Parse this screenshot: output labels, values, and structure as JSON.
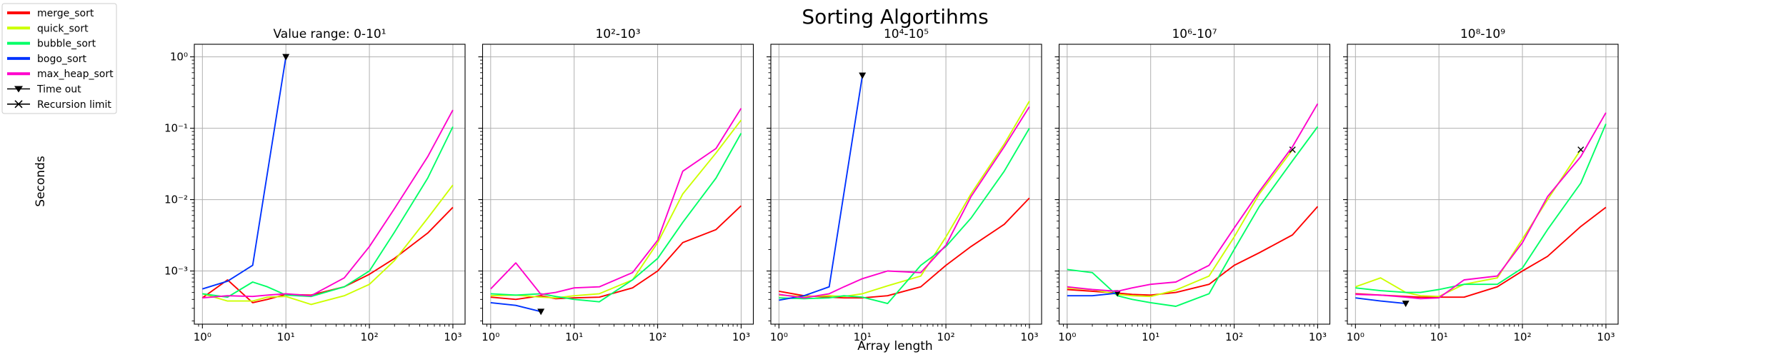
{
  "suptitle": "Sorting Algortihms",
  "ylabel": "Seconds",
  "xlabel": "Array length",
  "legend": {
    "placement": "upper-left",
    "entries": [
      {
        "label": "merge_sort",
        "color": "#ff0000",
        "kind": "line"
      },
      {
        "label": "quick_sort",
        "color": "#ccff00",
        "kind": "line"
      },
      {
        "label": "bubble_sort",
        "color": "#00ff66",
        "kind": "line"
      },
      {
        "label": "bogo_sort",
        "color": "#0033ff",
        "kind": "line"
      },
      {
        "label": "max_heap_sort",
        "color": "#ff00cc",
        "kind": "line"
      },
      {
        "label": "Time out",
        "color": "#000000",
        "kind": "marker-triangle"
      },
      {
        "label": "Recursion limit",
        "color": "#000000",
        "kind": "marker-x"
      }
    ]
  },
  "chart_data": [
    {
      "type": "line",
      "title": "Value range: 0-10¹",
      "xscale": "log",
      "yscale": "log",
      "xlim": [
        0.8,
        1400
      ],
      "ylim": [
        0.00018,
        1.5
      ],
      "xticks": [
        {
          "v": 1,
          "label": "10⁰"
        },
        {
          "v": 10,
          "label": "10¹"
        },
        {
          "v": 100,
          "label": "10²"
        },
        {
          "v": 1000,
          "label": "10³"
        }
      ],
      "yticks": [
        {
          "v": 0.001,
          "label": "10⁻³"
        },
        {
          "v": 0.01,
          "label": "10⁻²"
        },
        {
          "v": 0.1,
          "label": "10⁻¹"
        },
        {
          "v": 1,
          "label": "10⁰"
        }
      ],
      "show_yticklabels": true,
      "grid": true,
      "series": [
        {
          "color": "#ff0000",
          "x": [
            1,
            2,
            4,
            6,
            10,
            20,
            50,
            100,
            200,
            500,
            1000
          ],
          "y": [
            0.00042,
            0.00075,
            0.00036,
            0.0004,
            0.00047,
            0.00046,
            0.0006,
            0.0009,
            0.0015,
            0.0034,
            0.0078
          ]
        },
        {
          "color": "#ccff00",
          "x": [
            1,
            2,
            4,
            6,
            10,
            20,
            50,
            100,
            200,
            500,
            1000
          ],
          "y": [
            0.00048,
            0.00038,
            0.00038,
            0.00043,
            0.00044,
            0.00034,
            0.00045,
            0.00065,
            0.0014,
            0.0055,
            0.016
          ]
        },
        {
          "color": "#00ff66",
          "x": [
            1,
            2,
            4,
            6,
            10,
            20,
            50,
            100,
            200,
            500,
            1000
          ],
          "y": [
            0.00048,
            0.00043,
            0.0007,
            0.0006,
            0.00046,
            0.00044,
            0.0006,
            0.001,
            0.0035,
            0.02,
            0.105
          ]
        },
        {
          "color": "#0033ff",
          "x": [
            1,
            2,
            4,
            10
          ],
          "y": [
            0.00056,
            0.00072,
            0.0012,
            1.0
          ],
          "end_marker": "triangle"
        },
        {
          "color": "#ff00cc",
          "x": [
            1,
            2,
            4,
            6,
            10,
            20,
            50,
            100,
            200,
            500,
            1000
          ],
          "y": [
            0.00042,
            0.00045,
            0.00044,
            0.00046,
            0.00048,
            0.00045,
            0.0008,
            0.0022,
            0.0075,
            0.04,
            0.18
          ]
        }
      ]
    },
    {
      "type": "line",
      "title": "10²-10³",
      "xscale": "log",
      "yscale": "log",
      "xlim": [
        0.8,
        1400
      ],
      "ylim": [
        0.00018,
        1.5
      ],
      "xticks": [
        {
          "v": 1,
          "label": "10⁰"
        },
        {
          "v": 10,
          "label": "10¹"
        },
        {
          "v": 100,
          "label": "10²"
        },
        {
          "v": 1000,
          "label": "10³"
        }
      ],
      "yticks": [
        {
          "v": 0.001,
          "label": "10⁻³"
        },
        {
          "v": 0.01,
          "label": "10⁻²"
        },
        {
          "v": 0.1,
          "label": "10⁻¹"
        },
        {
          "v": 1,
          "label": "10⁰"
        }
      ],
      "show_yticklabels": false,
      "grid": true,
      "series": [
        {
          "color": "#ff0000",
          "x": [
            1,
            2,
            4,
            6,
            10,
            20,
            50,
            100,
            200,
            500,
            1000
          ],
          "y": [
            0.00043,
            0.0004,
            0.00045,
            0.00041,
            0.00042,
            0.00043,
            0.00058,
            0.001,
            0.0025,
            0.0038,
            0.0082
          ]
        },
        {
          "color": "#ccff00",
          "x": [
            1,
            2,
            4,
            6,
            10,
            20,
            50,
            100,
            200,
            500,
            1000
          ],
          "y": [
            0.00045,
            0.00046,
            0.00043,
            0.00042,
            0.00045,
            0.00048,
            0.00075,
            0.0025,
            0.012,
            0.045,
            0.13
          ]
        },
        {
          "color": "#00ff66",
          "x": [
            1,
            2,
            4,
            6,
            10,
            20,
            50,
            100,
            200,
            500,
            1000
          ],
          "y": [
            0.00048,
            0.00046,
            0.00048,
            0.00044,
            0.0004,
            0.00037,
            0.00075,
            0.0015,
            0.0048,
            0.02,
            0.085
          ]
        },
        {
          "color": "#0033ff",
          "x": [
            1,
            2,
            4
          ],
          "y": [
            0.00036,
            0.00033,
            0.00027
          ],
          "end_marker": "triangle"
        },
        {
          "color": "#ff00cc",
          "x": [
            1,
            2,
            4,
            6,
            10,
            20,
            50,
            100,
            200,
            500,
            1000
          ],
          "y": [
            0.00056,
            0.0013,
            0.00047,
            0.0005,
            0.00058,
            0.0006,
            0.00095,
            0.0027,
            0.025,
            0.052,
            0.19
          ]
        }
      ]
    },
    {
      "type": "line",
      "title": "10⁴-10⁵",
      "xscale": "log",
      "yscale": "log",
      "xlim": [
        0.8,
        1400
      ],
      "ylim": [
        0.00018,
        1.5
      ],
      "xticks": [
        {
          "v": 1,
          "label": "10⁰"
        },
        {
          "v": 10,
          "label": "10¹"
        },
        {
          "v": 100,
          "label": "10²"
        },
        {
          "v": 1000,
          "label": "10³"
        }
      ],
      "yticks": [
        {
          "v": 0.001,
          "label": "10⁻³"
        },
        {
          "v": 0.01,
          "label": "10⁻²"
        },
        {
          "v": 0.1,
          "label": "10⁻¹"
        },
        {
          "v": 1,
          "label": "10⁰"
        }
      ],
      "show_yticklabels": false,
      "grid": true,
      "series": [
        {
          "color": "#ff0000",
          "x": [
            1,
            2,
            4,
            6,
            10,
            20,
            50,
            100,
            200,
            500,
            1000
          ],
          "y": [
            0.00052,
            0.00045,
            0.00043,
            0.00042,
            0.00042,
            0.00045,
            0.0006,
            0.0012,
            0.0022,
            0.0045,
            0.0105
          ]
        },
        {
          "color": "#ccff00",
          "x": [
            1,
            2,
            4,
            6,
            10,
            20,
            50,
            100,
            200,
            500,
            1000
          ],
          "y": [
            0.00046,
            0.00044,
            0.00045,
            0.00044,
            0.00048,
            0.00062,
            0.00085,
            0.003,
            0.012,
            0.06,
            0.24
          ]
        },
        {
          "color": "#00ff66",
          "x": [
            1,
            2,
            4,
            6,
            10,
            20,
            50,
            100,
            200,
            500,
            1000
          ],
          "y": [
            0.00042,
            0.00041,
            0.00042,
            0.00045,
            0.00043,
            0.00035,
            0.0012,
            0.0022,
            0.0055,
            0.025,
            0.1
          ]
        },
        {
          "color": "#0033ff",
          "x": [
            1,
            2,
            4,
            10
          ],
          "y": [
            0.00039,
            0.00045,
            0.0006,
            0.55
          ],
          "end_marker": "triangle"
        },
        {
          "color": "#ff00cc",
          "x": [
            1,
            2,
            4,
            6,
            10,
            20,
            50,
            100,
            200,
            500,
            1000
          ],
          "y": [
            0.00047,
            0.00042,
            0.00048,
            0.0006,
            0.00078,
            0.001,
            0.00095,
            0.0023,
            0.011,
            0.055,
            0.2
          ]
        }
      ]
    },
    {
      "type": "line",
      "title": "10⁶-10⁷",
      "xscale": "log",
      "yscale": "log",
      "xlim": [
        0.8,
        1400
      ],
      "ylim": [
        0.00018,
        1.5
      ],
      "xticks": [
        {
          "v": 1,
          "label": "10⁰"
        },
        {
          "v": 10,
          "label": "10¹"
        },
        {
          "v": 100,
          "label": "10²"
        },
        {
          "v": 1000,
          "label": "10³"
        }
      ],
      "yticks": [
        {
          "v": 0.001,
          "label": "10⁻³"
        },
        {
          "v": 0.01,
          "label": "10⁻²"
        },
        {
          "v": 0.1,
          "label": "10⁻¹"
        },
        {
          "v": 1,
          "label": "10⁰"
        }
      ],
      "show_yticklabels": false,
      "grid": true,
      "series": [
        {
          "color": "#ff0000",
          "x": [
            1,
            2,
            4,
            6,
            10,
            20,
            50,
            100,
            200,
            500,
            1000
          ],
          "y": [
            0.00055,
            0.00052,
            0.00049,
            0.00047,
            0.00046,
            0.0005,
            0.00065,
            0.0012,
            0.0018,
            0.0032,
            0.008
          ]
        },
        {
          "color": "#ccff00",
          "x": [
            1,
            2,
            4,
            6,
            10,
            20,
            50,
            100,
            200,
            500
          ],
          "y": [
            0.00058,
            0.00055,
            0.00047,
            0.00045,
            0.00044,
            0.00054,
            0.00085,
            0.003,
            0.012,
            0.05
          ],
          "end_marker": "x"
        },
        {
          "color": "#00ff66",
          "x": [
            1,
            2,
            4,
            6,
            10,
            20,
            50,
            100,
            200,
            500,
            1000
          ],
          "y": [
            0.00105,
            0.00095,
            0.00045,
            0.0004,
            0.00036,
            0.00032,
            0.00048,
            0.002,
            0.008,
            0.035,
            0.105
          ]
        },
        {
          "color": "#0033ff",
          "x": [
            1,
            2,
            4
          ],
          "y": [
            0.00045,
            0.00045,
            0.00049
          ],
          "end_marker": "triangle"
        },
        {
          "color": "#ff00cc",
          "x": [
            1,
            2,
            4,
            6,
            10,
            20,
            50,
            100,
            200,
            500,
            1000
          ],
          "y": [
            0.0006,
            0.00055,
            0.00052,
            0.00058,
            0.00065,
            0.0007,
            0.0012,
            0.004,
            0.013,
            0.055,
            0.22
          ]
        }
      ]
    },
    {
      "type": "line",
      "title": "10⁸-10⁹",
      "xscale": "log",
      "yscale": "log",
      "xlim": [
        0.8,
        1400
      ],
      "ylim": [
        0.00018,
        1.5
      ],
      "xticks": [
        {
          "v": 1,
          "label": "10⁰"
        },
        {
          "v": 10,
          "label": "10¹"
        },
        {
          "v": 100,
          "label": "10²"
        },
        {
          "v": 1000,
          "label": "10³"
        }
      ],
      "yticks": [
        {
          "v": 0.001,
          "label": "10⁻³"
        },
        {
          "v": 0.01,
          "label": "10⁻²"
        },
        {
          "v": 0.1,
          "label": "10⁻¹"
        },
        {
          "v": 1,
          "label": "10⁰"
        }
      ],
      "show_yticklabels": false,
      "grid": true,
      "series": [
        {
          "color": "#ff0000",
          "x": [
            1,
            2,
            4,
            6,
            10,
            20,
            50,
            100,
            200,
            500,
            1000
          ],
          "y": [
            0.00048,
            0.00046,
            0.00044,
            0.00043,
            0.00043,
            0.00043,
            0.0006,
            0.001,
            0.0016,
            0.0042,
            0.0078
          ]
        },
        {
          "color": "#ccff00",
          "x": [
            1,
            2,
            4,
            6,
            10,
            20,
            50,
            100,
            200,
            500
          ],
          "y": [
            0.0006,
            0.0008,
            0.0005,
            0.00045,
            0.00044,
            0.00065,
            0.0008,
            0.0028,
            0.01,
            0.05
          ],
          "end_marker": "x"
        },
        {
          "color": "#00ff66",
          "x": [
            1,
            2,
            4,
            6,
            10,
            20,
            50,
            100,
            200,
            500,
            1000
          ],
          "y": [
            0.00058,
            0.00053,
            0.0005,
            0.0005,
            0.00055,
            0.00065,
            0.00065,
            0.0011,
            0.0038,
            0.017,
            0.115
          ]
        },
        {
          "color": "#0033ff",
          "x": [
            1,
            2,
            4
          ],
          "y": [
            0.00042,
            0.00038,
            0.00035
          ],
          "end_marker": "triangle"
        },
        {
          "color": "#ff00cc",
          "x": [
            1,
            2,
            4,
            6,
            10,
            20,
            50,
            100,
            200,
            500,
            1000
          ],
          "y": [
            0.00047,
            0.00046,
            0.00043,
            0.00041,
            0.00042,
            0.00075,
            0.00085,
            0.0025,
            0.011,
            0.04,
            0.165
          ]
        }
      ]
    }
  ]
}
